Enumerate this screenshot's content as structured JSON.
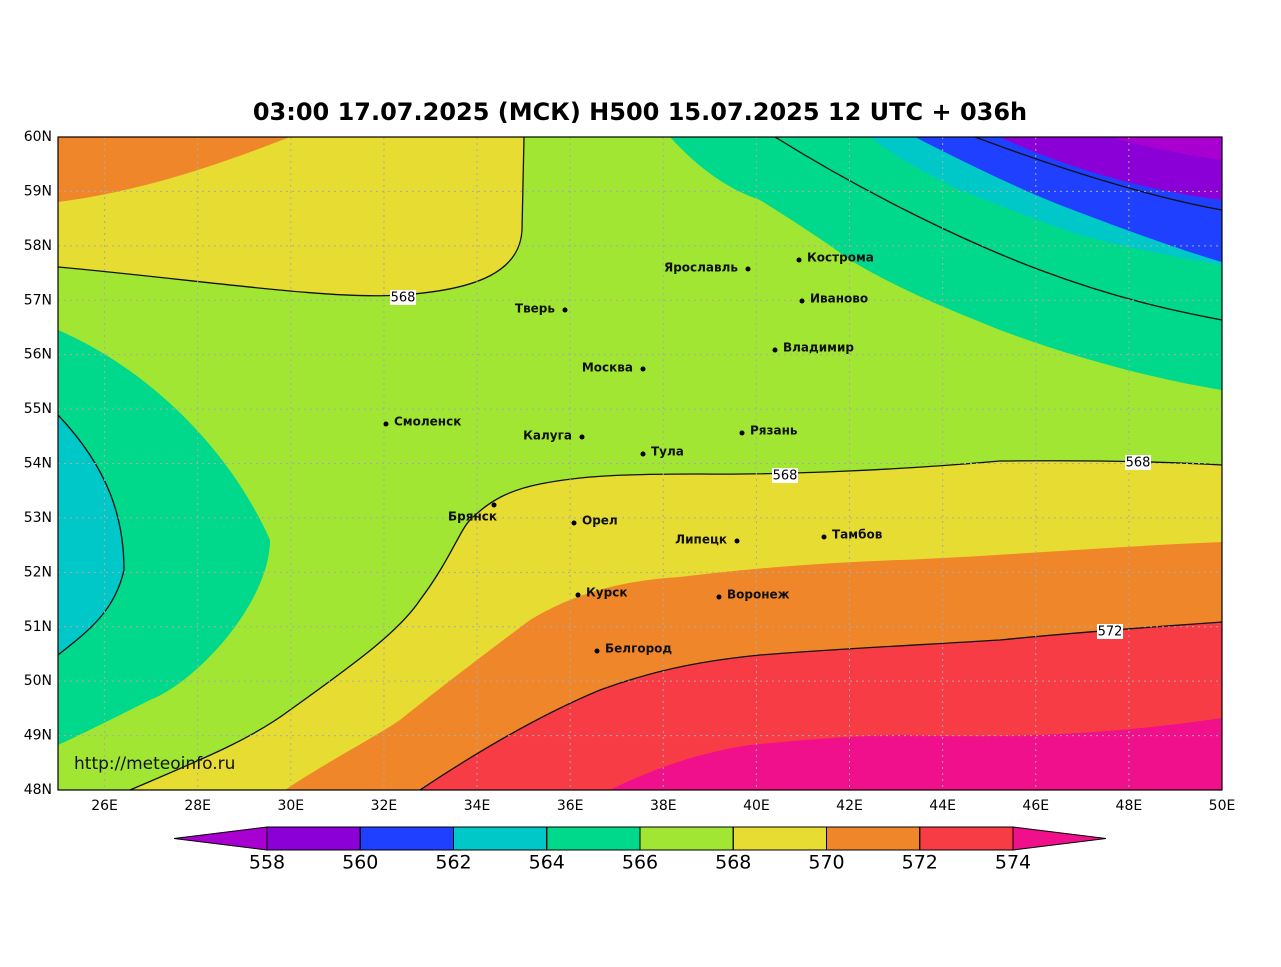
{
  "title": "03:00 17.07.2025 (МСК) H500  15.07.2025 12 UTC + 036h",
  "lat_ticks": [
    "60N",
    "59N",
    "58N",
    "57N",
    "56N",
    "55N",
    "54N",
    "53N",
    "52N",
    "51N",
    "50N",
    "49N",
    "48N"
  ],
  "lon_ticks": [
    "26E",
    "28E",
    "30E",
    "32E",
    "34E",
    "36E",
    "38E",
    "40E",
    "42E",
    "44E",
    "46E",
    "48E",
    "50E"
  ],
  "cities": [
    "Ярославль",
    "Кострома",
    "Тверь",
    "Иваново",
    "Владимир",
    "Москва",
    "Смоленск",
    "Калуга",
    "Рязань",
    "Тула",
    "Брянск",
    "Орел",
    "Липецк",
    "Тамбов",
    "Курск",
    "Воронеж",
    "Белгород"
  ],
  "contour_labels": [
    568,
    568,
    568,
    572
  ],
  "credit": "http://meteoinfo.ru",
  "colorbar": {
    "ticks": [
      558,
      560,
      562,
      564,
      566,
      568,
      570,
      572,
      574
    ],
    "colors": [
      "#a800d0",
      "#8c00d8",
      "#2040ff",
      "#00c8c8",
      "#00d88c",
      "#a0e632",
      "#e6dc32",
      "#f0862a",
      "#f83c46",
      "#f0108c"
    ]
  }
}
